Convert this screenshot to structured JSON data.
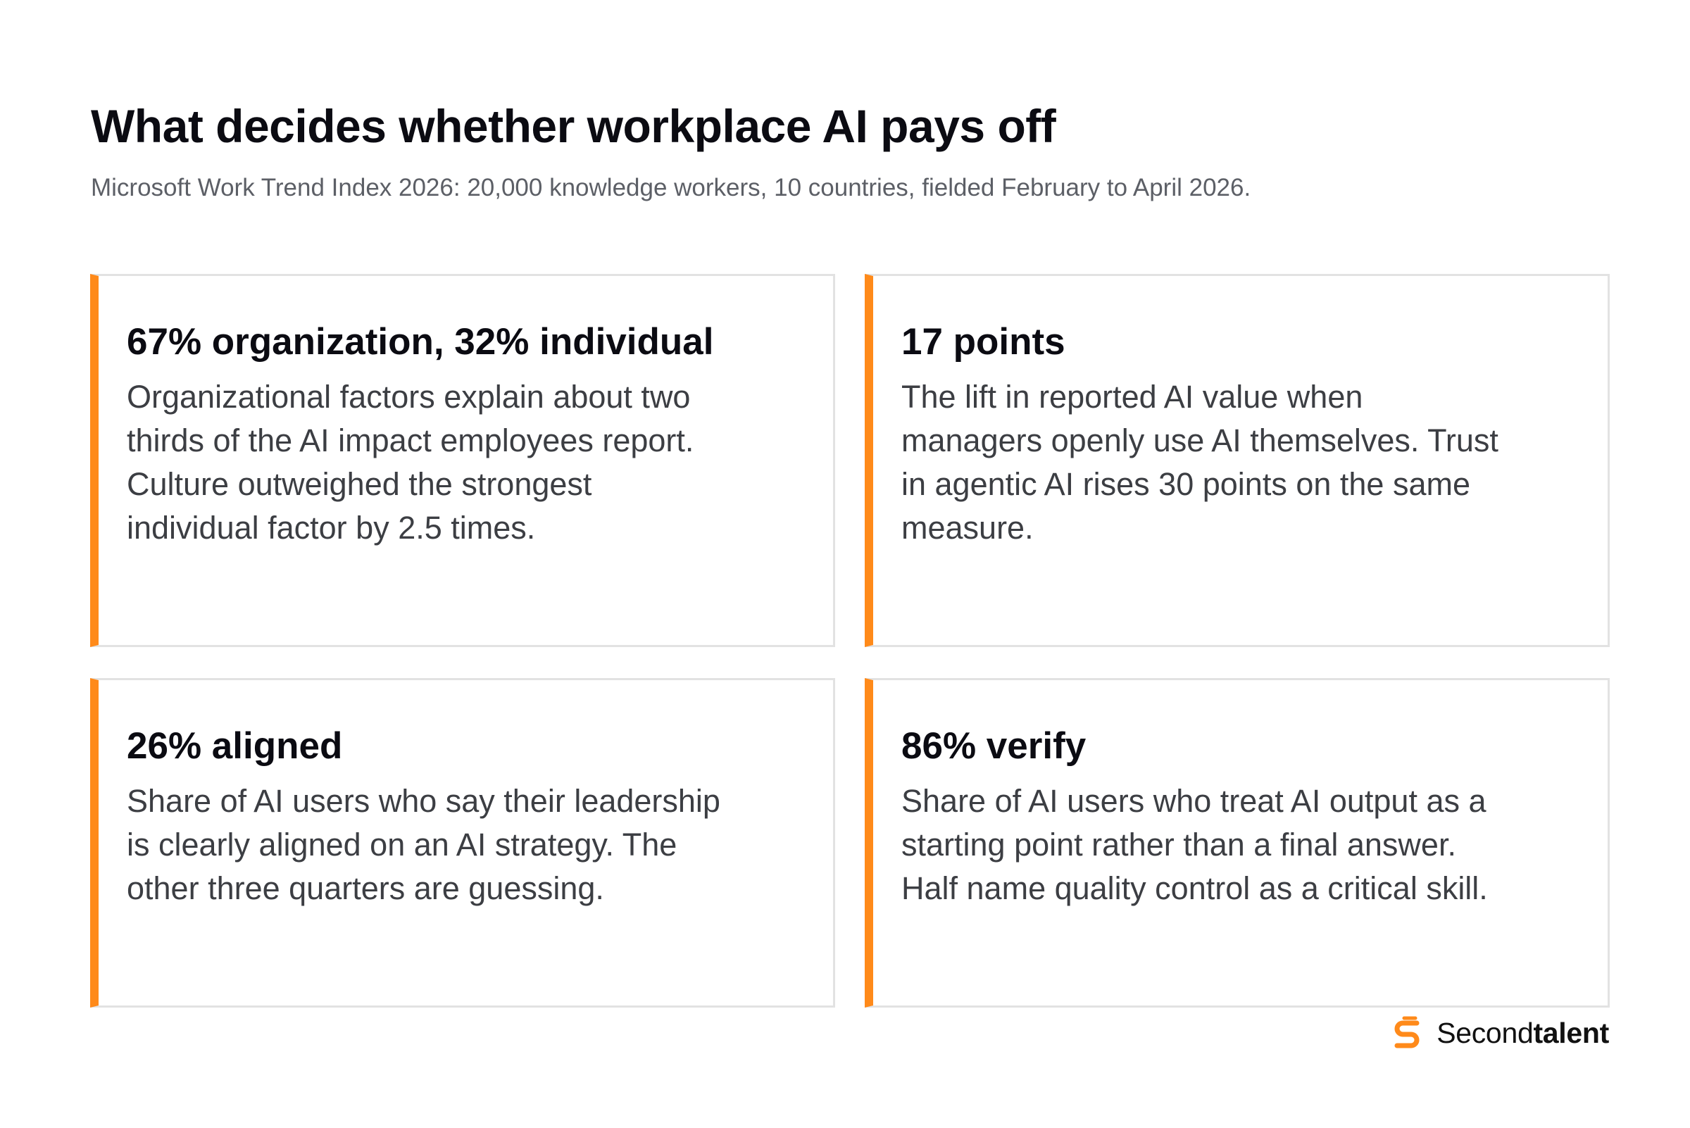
{
  "header": {
    "title": "What decides whether workplace AI pays off",
    "subtitle": "Microsoft Work Trend Index 2026: 20,000 knowledge workers, 10 countries, fielded February to April 2026."
  },
  "cards": [
    {
      "heading": "67% organization, 32% individual",
      "body": "Organizational factors explain about two thirds of the AI impact employees report. Culture outweighed the strongest individual factor by 2.5 times."
    },
    {
      "heading": "17 points",
      "body": "The lift in reported AI value when managers openly use AI themselves. Trust in agentic AI rises 30 points on the same measure."
    },
    {
      "heading": "26% aligned",
      "body": "Share of AI users who say their leadership is clearly aligned on an AI strategy. The other three quarters are guessing."
    },
    {
      "heading": "86% verify",
      "body": "Share of AI users who treat AI output as a starting point rather than a final answer. Half name quality control as a critical skill."
    }
  ],
  "brand": {
    "name_regular": "Second",
    "name_bold": "talent",
    "icon": "secondtalent-logo-icon"
  },
  "colors": {
    "accent": "#ff8a1a",
    "card_border": "#e2e2e2",
    "title": "#0b0b12",
    "subtitle": "#5c5f66",
    "body": "#3c3e43"
  }
}
